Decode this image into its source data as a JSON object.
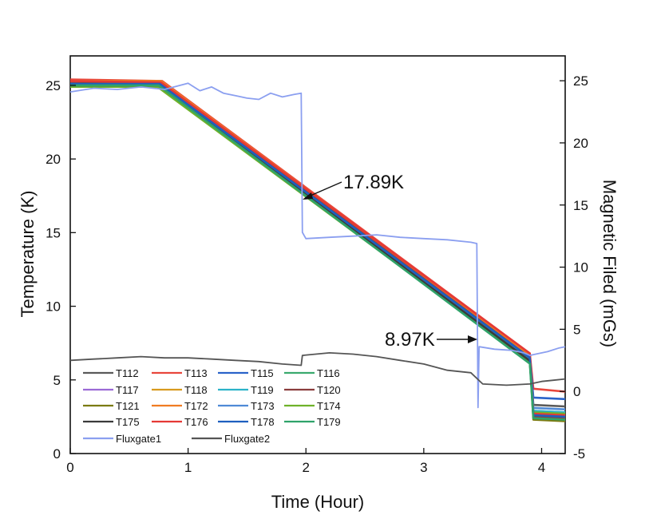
{
  "chart_data": {
    "type": "line",
    "xlabel": "Time (Hour)",
    "ylabel": "Temperature (K)",
    "y2label": "Magnetic Filed (mGs)",
    "xlim": [
      0,
      4.2
    ],
    "ylim": [
      0,
      27
    ],
    "y2lim": [
      -5,
      27
    ],
    "x_ticks": [
      0,
      1,
      2,
      3,
      4
    ],
    "y_ticks": [
      0,
      5,
      10,
      15,
      20,
      25
    ],
    "y2_ticks": [
      -5,
      0,
      5,
      10,
      15,
      20,
      25
    ],
    "grid": false,
    "legend_position": "bottom-left",
    "annotations": [
      {
        "text": "17.89K",
        "x": 1.97,
        "y": 17.89
      },
      {
        "text": "8.97K",
        "x": 3.45,
        "y": 7.7
      }
    ],
    "temperature_series": [
      {
        "name": "T112",
        "color": "#5a5a5a",
        "values": [
          [
            0,
            25.1
          ],
          [
            0.75,
            25.1
          ],
          [
            3.9,
            6.6
          ],
          [
            3.93,
            3.3
          ],
          [
            4.2,
            3.2
          ]
        ]
      },
      {
        "name": "T113",
        "color": "#e8463c",
        "values": [
          [
            0,
            25.4
          ],
          [
            0.78,
            25.3
          ],
          [
            3.9,
            6.8
          ],
          [
            3.93,
            4.4
          ],
          [
            4.2,
            4.2
          ]
        ]
      },
      {
        "name": "T115",
        "color": "#2a63c9",
        "values": [
          [
            0,
            25.2
          ],
          [
            0.76,
            25.2
          ],
          [
            3.9,
            6.6
          ],
          [
            3.93,
            3.8
          ],
          [
            4.2,
            3.7
          ]
        ]
      },
      {
        "name": "T116",
        "color": "#3aaa6e",
        "values": [
          [
            0,
            25.0
          ],
          [
            0.74,
            25.0
          ],
          [
            3.9,
            6.3
          ],
          [
            3.93,
            2.9
          ],
          [
            4.2,
            2.8
          ]
        ]
      },
      {
        "name": "T117",
        "color": "#9b6ad6",
        "values": [
          [
            0,
            25.1
          ],
          [
            0.75,
            25.1
          ],
          [
            3.9,
            6.5
          ],
          [
            3.93,
            2.7
          ],
          [
            4.2,
            2.6
          ]
        ]
      },
      {
        "name": "T118",
        "color": "#d89a1e",
        "values": [
          [
            0,
            25.3
          ],
          [
            0.77,
            25.2
          ],
          [
            3.9,
            6.7
          ],
          [
            3.93,
            2.6
          ],
          [
            4.2,
            2.5
          ]
        ]
      },
      {
        "name": "T119",
        "color": "#2bb3c9",
        "values": [
          [
            0,
            25.0
          ],
          [
            0.75,
            25.0
          ],
          [
            3.9,
            6.4
          ],
          [
            3.93,
            2.9
          ],
          [
            4.2,
            2.8
          ]
        ]
      },
      {
        "name": "T120",
        "color": "#8a3d3d",
        "values": [
          [
            0,
            25.2
          ],
          [
            0.76,
            25.1
          ],
          [
            3.9,
            6.6
          ],
          [
            3.93,
            2.5
          ],
          [
            4.2,
            2.4
          ]
        ]
      },
      {
        "name": "T121",
        "color": "#7b7b12",
        "values": [
          [
            0,
            25.1
          ],
          [
            0.75,
            25.1
          ],
          [
            3.9,
            6.5
          ],
          [
            3.93,
            2.3
          ],
          [
            4.2,
            2.2
          ]
        ]
      },
      {
        "name": "T172",
        "color": "#f07c22",
        "values": [
          [
            0,
            25.3
          ],
          [
            0.77,
            25.3
          ],
          [
            3.9,
            6.7
          ],
          [
            3.93,
            2.6
          ],
          [
            4.2,
            2.5
          ]
        ]
      },
      {
        "name": "T173",
        "color": "#4f8ad6",
        "values": [
          [
            0,
            25.1
          ],
          [
            0.76,
            25.0
          ],
          [
            3.9,
            6.5
          ],
          [
            3.93,
            3.1
          ],
          [
            4.2,
            3.0
          ]
        ]
      },
      {
        "name": "T174",
        "color": "#6fb22a",
        "values": [
          [
            0,
            24.9
          ],
          [
            0.74,
            24.9
          ],
          [
            3.9,
            6.2
          ],
          [
            3.93,
            2.8
          ],
          [
            4.2,
            2.7
          ]
        ]
      },
      {
        "name": "T175",
        "color": "#3a3a3a",
        "values": [
          [
            0,
            25.0
          ],
          [
            0.75,
            25.0
          ],
          [
            3.9,
            6.3
          ],
          [
            3.93,
            2.6
          ],
          [
            4.2,
            2.5
          ]
        ]
      },
      {
        "name": "T176",
        "color": "#e53935",
        "values": [
          [
            0,
            25.3
          ],
          [
            0.77,
            25.2
          ],
          [
            3.9,
            6.8
          ],
          [
            3.93,
            2.7
          ],
          [
            4.2,
            2.6
          ]
        ]
      },
      {
        "name": "T178",
        "color": "#1e5fbf",
        "values": [
          [
            0,
            25.1
          ],
          [
            0.76,
            25.1
          ],
          [
            3.9,
            6.5
          ],
          [
            3.93,
            2.6
          ],
          [
            4.2,
            2.5
          ]
        ]
      },
      {
        "name": "T179",
        "color": "#2fa36a",
        "values": [
          [
            0,
            25.0
          ],
          [
            0.75,
            25.0
          ],
          [
            3.9,
            6.1
          ],
          [
            3.93,
            2.4
          ],
          [
            4.2,
            2.3
          ]
        ]
      }
    ],
    "field_series": [
      {
        "name": "Fluxgate1",
        "color": "#8b9ff0",
        "values": [
          [
            0,
            24.1
          ],
          [
            0.2,
            24.4
          ],
          [
            0.4,
            24.3
          ],
          [
            0.6,
            24.5
          ],
          [
            0.8,
            24.3
          ],
          [
            1.0,
            24.8
          ],
          [
            1.1,
            24.2
          ],
          [
            1.2,
            24.5
          ],
          [
            1.3,
            24.0
          ],
          [
            1.4,
            23.8
          ],
          [
            1.5,
            23.6
          ],
          [
            1.6,
            23.5
          ],
          [
            1.7,
            24.0
          ],
          [
            1.8,
            23.7
          ],
          [
            1.9,
            23.9
          ],
          [
            1.96,
            24.0
          ],
          [
            1.97,
            12.8
          ],
          [
            2.0,
            12.3
          ],
          [
            2.2,
            12.4
          ],
          [
            2.4,
            12.5
          ],
          [
            2.6,
            12.6
          ],
          [
            2.8,
            12.4
          ],
          [
            3.0,
            12.3
          ],
          [
            3.2,
            12.2
          ],
          [
            3.4,
            12.0
          ],
          [
            3.45,
            11.9
          ],
          [
            3.46,
            -1.3
          ],
          [
            3.47,
            3.6
          ],
          [
            3.6,
            3.4
          ],
          [
            3.75,
            3.3
          ],
          [
            3.85,
            3.1
          ],
          [
            3.9,
            2.9
          ],
          [
            3.95,
            3.0
          ],
          [
            4.05,
            3.2
          ],
          [
            4.15,
            3.5
          ],
          [
            4.2,
            3.6
          ]
        ]
      },
      {
        "name": "Fluxgate2",
        "color": "#555555",
        "values": [
          [
            0,
            2.5
          ],
          [
            0.2,
            2.6
          ],
          [
            0.4,
            2.7
          ],
          [
            0.6,
            2.8
          ],
          [
            0.8,
            2.7
          ],
          [
            1.0,
            2.7
          ],
          [
            1.2,
            2.6
          ],
          [
            1.4,
            2.5
          ],
          [
            1.6,
            2.4
          ],
          [
            1.8,
            2.2
          ],
          [
            1.96,
            2.1
          ],
          [
            1.97,
            2.9
          ],
          [
            2.2,
            3.1
          ],
          [
            2.4,
            3.0
          ],
          [
            2.6,
            2.8
          ],
          [
            2.8,
            2.5
          ],
          [
            3.0,
            2.2
          ],
          [
            3.2,
            1.7
          ],
          [
            3.4,
            1.5
          ],
          [
            3.5,
            0.6
          ],
          [
            3.7,
            0.5
          ],
          [
            3.9,
            0.6
          ],
          [
            4.0,
            0.8
          ],
          [
            4.1,
            0.9
          ],
          [
            4.2,
            1.0
          ]
        ]
      }
    ]
  }
}
